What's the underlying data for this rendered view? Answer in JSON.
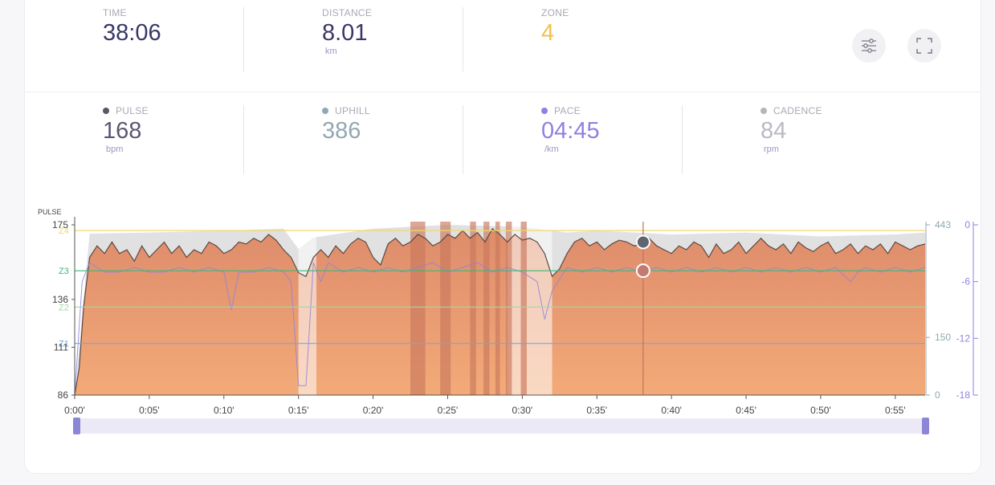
{
  "summary": {
    "time": {
      "label": "TIME",
      "value": "38:06"
    },
    "distance": {
      "label": "DISTANCE",
      "value": "8.01",
      "unit": "km"
    },
    "zone": {
      "label": "ZONE",
      "value": "4"
    }
  },
  "metrics": {
    "pulse": {
      "label": "PULSE",
      "value": "168",
      "unit": "bpm",
      "color": "#555a66"
    },
    "uphill": {
      "label": "UPHILL",
      "value": "386",
      "unit": "",
      "color": "#8fa9b3"
    },
    "pace": {
      "label": "PACE",
      "value": "04:45",
      "unit": "/km",
      "color": "#8e82e0"
    },
    "cadence": {
      "label": "CADENCE",
      "value": "84",
      "unit": "rpm",
      "color": "#b5b5bd"
    }
  },
  "colors": {
    "zone_value": "#f2c14e",
    "pulse_value": "#5a5870",
    "uphill_value": "#94a8b2",
    "pace_value": "#8e82e0",
    "cadence_value": "#b9b9c2",
    "fill": "#e8906a",
    "pace_line": "#8e82e0",
    "cursor": "#c27358"
  },
  "icons": {
    "settings": "sliders-icon",
    "fullscreen": "fullscreen-icon"
  },
  "chart_data": {
    "type": "area",
    "y_axis_title": "PULSE",
    "x_ticks": [
      "0:00'",
      "0:05'",
      "0:10'",
      "0:15'",
      "0:20'",
      "0:25'",
      "0:30'",
      "0:35'",
      "0:40'",
      "0:45'",
      "0:50'",
      "0:55'"
    ],
    "x_range_min": [
      0,
      57
    ],
    "left_axis": {
      "ticks": [
        175,
        136,
        111,
        86
      ],
      "range": [
        86,
        175
      ]
    },
    "elevation_axis": {
      "ticks": [
        443,
        150,
        0
      ],
      "range": [
        0,
        443
      ]
    },
    "pace_axis": {
      "ticks": [
        0,
        -6,
        -12,
        -18
      ],
      "range": [
        -18,
        0
      ]
    },
    "zones": [
      {
        "name": "Z4",
        "bpm": 172,
        "color": "#f2d86a"
      },
      {
        "name": "Z3",
        "bpm": 151,
        "color": "#3cb878"
      },
      {
        "name": "Z2",
        "bpm": 132,
        "color": "#9ed9a6"
      },
      {
        "name": "Z1",
        "bpm": 113,
        "color": "#78a8d8"
      }
    ],
    "cursor_minute": 38.1,
    "pulse_series": {
      "name": "PULSE",
      "points": [
        [
          0,
          86
        ],
        [
          0.3,
          100
        ],
        [
          0.6,
          132
        ],
        [
          1,
          158
        ],
        [
          1.5,
          164
        ],
        [
          2,
          160
        ],
        [
          2.5,
          166
        ],
        [
          3,
          160
        ],
        [
          3.5,
          162
        ],
        [
          4,
          156
        ],
        [
          4.5,
          164
        ],
        [
          5,
          158
        ],
        [
          5.5,
          162
        ],
        [
          6,
          166
        ],
        [
          6.5,
          160
        ],
        [
          7,
          164
        ],
        [
          7.5,
          158
        ],
        [
          8,
          162
        ],
        [
          8.5,
          160
        ],
        [
          9,
          166
        ],
        [
          9.5,
          164
        ],
        [
          10,
          160
        ],
        [
          10.5,
          162
        ],
        [
          11,
          166
        ],
        [
          11.5,
          165
        ],
        [
          12,
          168
        ],
        [
          12.5,
          166
        ],
        [
          13,
          170
        ],
        [
          13.5,
          167
        ],
        [
          14,
          162
        ],
        [
          14.5,
          158
        ],
        [
          15,
          150
        ],
        [
          15.5,
          148
        ],
        [
          16,
          158
        ],
        [
          16.5,
          162
        ],
        [
          17,
          158
        ],
        [
          17.5,
          164
        ],
        [
          18,
          160
        ],
        [
          18.5,
          165
        ],
        [
          19,
          168
        ],
        [
          19.5,
          166
        ],
        [
          20,
          158
        ],
        [
          20.5,
          154
        ],
        [
          21,
          165
        ],
        [
          21.5,
          168
        ],
        [
          22,
          164
        ],
        [
          22.5,
          166
        ],
        [
          23,
          170
        ],
        [
          23.5,
          168
        ],
        [
          24,
          164
        ],
        [
          24.5,
          166
        ],
        [
          25,
          170
        ],
        [
          25.5,
          168
        ],
        [
          26,
          172
        ],
        [
          26.5,
          168
        ],
        [
          27,
          171
        ],
        [
          27.5,
          166
        ],
        [
          28,
          173
        ],
        [
          28.5,
          170
        ],
        [
          29,
          166
        ],
        [
          29.5,
          170
        ],
        [
          30,
          167
        ],
        [
          30.5,
          168
        ],
        [
          31,
          166
        ],
        [
          31.5,
          160
        ],
        [
          32,
          148
        ],
        [
          32.5,
          152
        ],
        [
          33,
          160
        ],
        [
          33.5,
          166
        ],
        [
          34,
          168
        ],
        [
          34.5,
          164
        ],
        [
          35,
          166
        ],
        [
          35.5,
          162
        ],
        [
          36,
          165
        ],
        [
          36.5,
          167
        ],
        [
          37,
          166
        ],
        [
          37.5,
          164
        ],
        [
          38,
          165
        ],
        [
          38.5,
          168
        ],
        [
          39,
          164
        ],
        [
          39.5,
          162
        ],
        [
          40,
          160
        ],
        [
          40.5,
          164
        ],
        [
          41,
          162
        ],
        [
          41.5,
          166
        ],
        [
          42,
          164
        ],
        [
          42.5,
          158
        ],
        [
          43,
          165
        ],
        [
          43.5,
          160
        ],
        [
          44,
          162
        ],
        [
          44.5,
          166
        ],
        [
          45,
          160
        ],
        [
          45.5,
          164
        ],
        [
          46,
          168
        ],
        [
          46.5,
          164
        ],
        [
          47,
          162
        ],
        [
          47.5,
          165
        ],
        [
          48,
          160
        ],
        [
          48.5,
          166
        ],
        [
          49,
          163
        ],
        [
          49.5,
          161
        ],
        [
          50,
          164
        ],
        [
          50.5,
          166
        ],
        [
          51,
          160
        ],
        [
          51.5,
          162
        ],
        [
          52,
          165
        ],
        [
          52.5,
          160
        ],
        [
          53,
          164
        ],
        [
          53.5,
          162
        ],
        [
          54,
          165
        ],
        [
          54.5,
          160
        ],
        [
          55,
          166
        ],
        [
          55.5,
          164
        ],
        [
          56,
          162
        ],
        [
          56.5,
          164
        ],
        [
          57,
          165
        ]
      ]
    },
    "pace_series": {
      "name": "PACE",
      "points": [
        [
          0,
          -18
        ],
        [
          0.5,
          -6
        ],
        [
          1,
          -4
        ],
        [
          2,
          -5
        ],
        [
          3,
          -5
        ],
        [
          4,
          -4.5
        ],
        [
          5,
          -5
        ],
        [
          6,
          -5
        ],
        [
          7,
          -4.5
        ],
        [
          8,
          -5
        ],
        [
          9,
          -4.5
        ],
        [
          10,
          -5
        ],
        [
          10.5,
          -9
        ],
        [
          11,
          -5
        ],
        [
          12,
          -5
        ],
        [
          13,
          -4.5
        ],
        [
          14,
          -5
        ],
        [
          14.5,
          -6
        ],
        [
          15,
          -17
        ],
        [
          15.5,
          -17
        ],
        [
          16,
          -4
        ],
        [
          16.5,
          -6
        ],
        [
          17,
          -4
        ],
        [
          18,
          -5
        ],
        [
          19,
          -4.5
        ],
        [
          20,
          -5
        ],
        [
          21,
          -4.5
        ],
        [
          22,
          -5
        ],
        [
          23,
          -4.5
        ],
        [
          24,
          -4
        ],
        [
          25,
          -5
        ],
        [
          26,
          -4.5
        ],
        [
          27,
          -4
        ],
        [
          28,
          -5
        ],
        [
          29,
          -4.5
        ],
        [
          30,
          -5
        ],
        [
          31,
          -6
        ],
        [
          31.5,
          -10
        ],
        [
          32,
          -7
        ],
        [
          33,
          -4.5
        ],
        [
          34,
          -5
        ],
        [
          35,
          -4.5
        ],
        [
          36,
          -5
        ],
        [
          37,
          -4.5
        ],
        [
          38,
          -5
        ],
        [
          39,
          -4.5
        ],
        [
          40,
          -5
        ],
        [
          41,
          -4.5
        ],
        [
          42,
          -5
        ],
        [
          43,
          -4.5
        ],
        [
          44,
          -5
        ],
        [
          45,
          -4.5
        ],
        [
          46,
          -5
        ],
        [
          47,
          -4.5
        ],
        [
          48,
          -5
        ],
        [
          49,
          -4.5
        ],
        [
          50,
          -5
        ],
        [
          51,
          -4.5
        ],
        [
          52,
          -6
        ],
        [
          52.5,
          -5
        ],
        [
          53,
          -4.5
        ],
        [
          54,
          -5
        ],
        [
          55,
          -4.5
        ],
        [
          56,
          -5
        ],
        [
          57,
          -4.5
        ]
      ]
    },
    "uphill_series": {
      "name": "UPHILL",
      "points": [
        [
          0,
          0
        ],
        [
          1,
          420
        ],
        [
          5,
          423
        ],
        [
          10,
          428
        ],
        [
          14,
          433
        ],
        [
          15,
          380
        ],
        [
          16,
          410
        ],
        [
          20,
          433
        ],
        [
          25,
          443
        ],
        [
          30,
          438
        ],
        [
          33,
          423
        ],
        [
          35,
          428
        ],
        [
          40,
          418
        ],
        [
          45,
          423
        ],
        [
          50,
          413
        ],
        [
          55,
          418
        ],
        [
          57,
          423
        ]
      ]
    },
    "light_bands_min": [
      [
        15,
        16.2
      ],
      [
        29,
        32
      ]
    ],
    "dark_bands_min": [
      [
        22.5,
        23.5
      ],
      [
        24.5,
        25.2
      ],
      [
        26.5,
        26.9
      ],
      [
        27.4,
        27.8
      ],
      [
        28.2,
        28.5
      ],
      [
        28.9,
        29.3
      ],
      [
        29.9,
        30.3
      ]
    ]
  }
}
